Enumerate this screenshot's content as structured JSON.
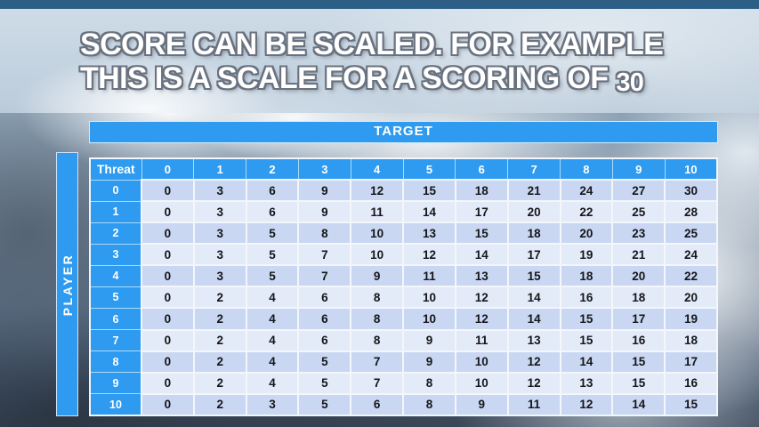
{
  "slide": {
    "title_line1": "SCORE CAN BE SCALED. FOR EXAMPLE",
    "title_line2_text": "THIS IS A SCALE FOR A SCORING OF",
    "title_line2_number": "30"
  },
  "colors": {
    "accent_blue": "#2e9bf0",
    "row_dark": "#c9d7f2",
    "row_light": "#e3eaf8",
    "top_strip_blue": "#2d5f86",
    "cell_text": "#15161a",
    "header_text": "#ffffff"
  },
  "table": {
    "target_label": "TARGET",
    "player_label": "PLAYER",
    "threat_label": "Threat",
    "target_cols": [
      "0",
      "1",
      "2",
      "3",
      "4",
      "5",
      "6",
      "7",
      "8",
      "9",
      "10"
    ],
    "player_rows": [
      "0",
      "1",
      "2",
      "3",
      "4",
      "5",
      "6",
      "7",
      "8",
      "9",
      "10"
    ],
    "values": [
      [
        0,
        3,
        6,
        9,
        12,
        15,
        18,
        21,
        24,
        27,
        30
      ],
      [
        0,
        3,
        6,
        9,
        11,
        14,
        17,
        20,
        22,
        25,
        28
      ],
      [
        0,
        3,
        5,
        8,
        10,
        13,
        15,
        18,
        20,
        23,
        25
      ],
      [
        0,
        3,
        5,
        7,
        10,
        12,
        14,
        17,
        19,
        21,
        24
      ],
      [
        0,
        3,
        5,
        7,
        9,
        11,
        13,
        15,
        18,
        20,
        22
      ],
      [
        0,
        2,
        4,
        6,
        8,
        10,
        12,
        14,
        16,
        18,
        20
      ],
      [
        0,
        2,
        4,
        6,
        8,
        10,
        12,
        14,
        15,
        17,
        19
      ],
      [
        0,
        2,
        4,
        6,
        8,
        9,
        11,
        13,
        15,
        16,
        18
      ],
      [
        0,
        2,
        4,
        5,
        7,
        9,
        10,
        12,
        14,
        15,
        17
      ],
      [
        0,
        2,
        4,
        5,
        7,
        8,
        10,
        12,
        13,
        15,
        16
      ],
      [
        0,
        2,
        3,
        5,
        6,
        8,
        9,
        11,
        12,
        14,
        15
      ]
    ]
  }
}
